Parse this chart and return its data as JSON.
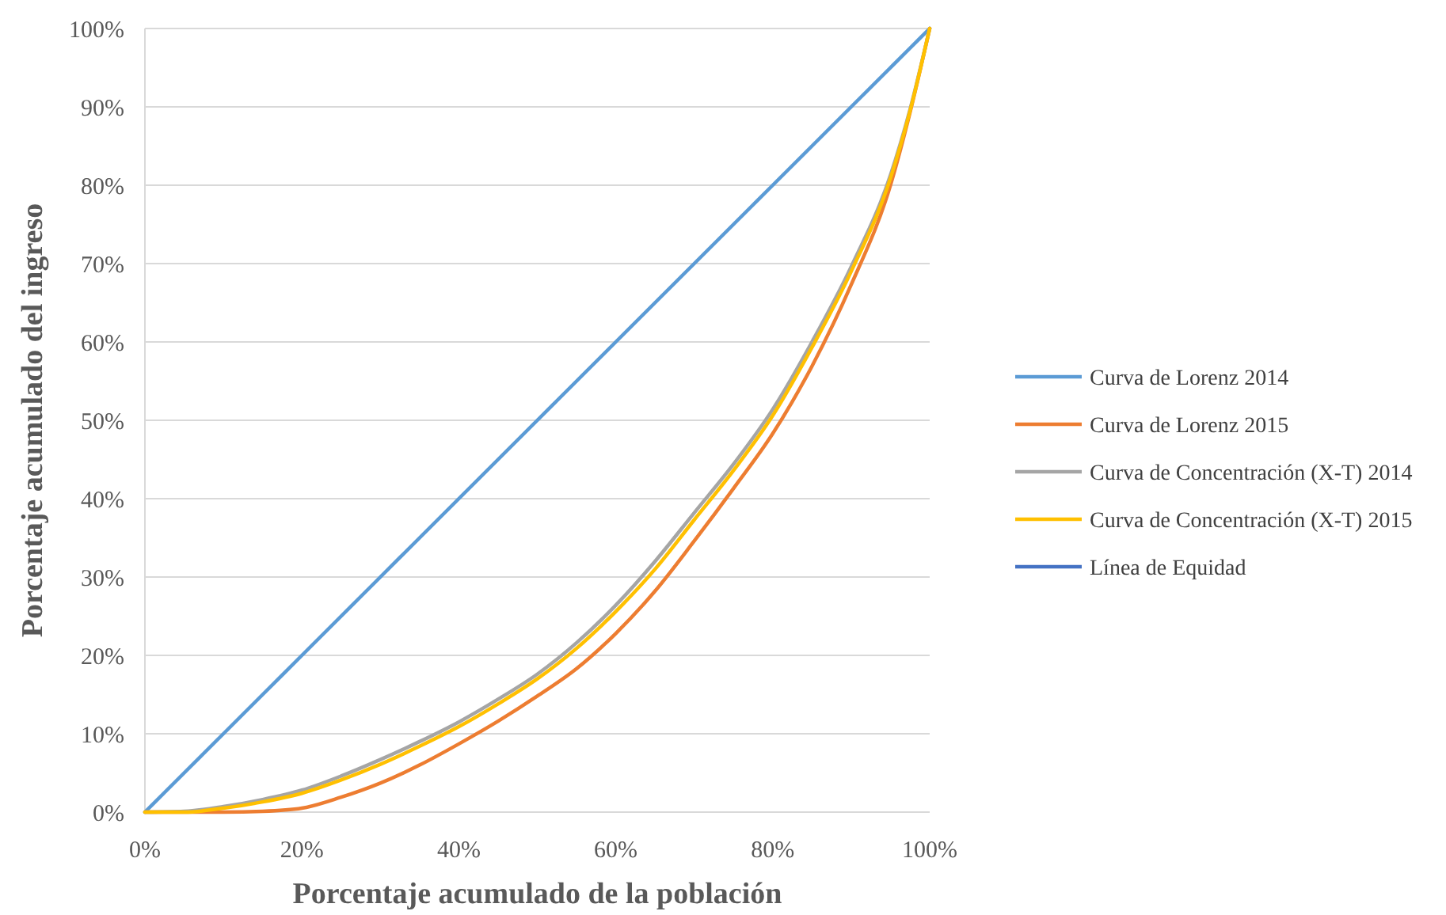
{
  "chart_data": {
    "type": "line",
    "xlabel": "Porcentaje acumulado de la población",
    "ylabel": "Porcentaje acumulado del ingreso",
    "x": [
      0,
      5,
      10,
      15,
      20,
      25,
      30,
      35,
      40,
      45,
      50,
      55,
      60,
      65,
      70,
      75,
      80,
      85,
      90,
      95,
      97.5,
      100
    ],
    "xlim": [
      0,
      100
    ],
    "xticks": [
      {
        "value": 0,
        "label": "0%"
      },
      {
        "value": 20,
        "label": "20%"
      },
      {
        "value": 40,
        "label": "40%"
      },
      {
        "value": 60,
        "label": "60%"
      },
      {
        "value": 80,
        "label": "80%"
      },
      {
        "value": 100,
        "label": "100%"
      }
    ],
    "ylim": [
      0,
      100
    ],
    "yticks": [
      {
        "value": 0,
        "label": "0%"
      },
      {
        "value": 10,
        "label": "10%"
      },
      {
        "value": 20,
        "label": "20%"
      },
      {
        "value": 30,
        "label": "30%"
      },
      {
        "value": 40,
        "label": "40%"
      },
      {
        "value": 50,
        "label": "50%"
      },
      {
        "value": 60,
        "label": "60%"
      },
      {
        "value": 70,
        "label": "70%"
      },
      {
        "value": 80,
        "label": "80%"
      },
      {
        "value": 90,
        "label": "90%"
      },
      {
        "value": 100,
        "label": "100%"
      }
    ],
    "grid": "y",
    "legend": "right",
    "series": [
      {
        "name": "Curva de Lorenz 2014",
        "color": "#5b9bd5",
        "values": [
          0,
          5,
          10,
          15,
          20,
          25,
          30,
          35,
          40,
          45,
          50,
          55,
          60,
          65,
          70,
          75,
          80,
          85,
          90,
          95,
          97.5,
          100
        ]
      },
      {
        "name": "Curva de Lorenz 2015",
        "color": "#ed7d31",
        "values": [
          0,
          0,
          0,
          0.1,
          0.5,
          1.9,
          3.7,
          6,
          8.7,
          11.6,
          14.8,
          18.3,
          22.8,
          28.2,
          34.6,
          41.3,
          48.3,
          56.9,
          67.3,
          80,
          89.3,
          100
        ]
      },
      {
        "name": "Curva de Concentración (X-T) 2014",
        "color": "#a5a5a5",
        "values": [
          0,
          0.1,
          0.7,
          1.6,
          2.8,
          4.6,
          6.7,
          9,
          11.5,
          14.4,
          17.6,
          21.6,
          26.4,
          32,
          38.2,
          44.4,
          51.4,
          60,
          69.6,
          81.3,
          89.7,
          100
        ]
      },
      {
        "name": "Curva de Concentración (X-T) 2015",
        "color": "#ffc000",
        "values": [
          0,
          0,
          0.5,
          1.3,
          2.4,
          4.1,
          6.1,
          8.4,
          10.9,
          13.8,
          17,
          20.9,
          25.6,
          31,
          37.3,
          43.6,
          50.6,
          59.3,
          69,
          80.9,
          89.5,
          100
        ]
      },
      {
        "name": "Línea de Equidad",
        "color": "#4472c4",
        "values": [
          null,
          null,
          null,
          null,
          null,
          null,
          null,
          null,
          null,
          null,
          null,
          null,
          null,
          null,
          null,
          null,
          null,
          null,
          null,
          null,
          null,
          null
        ]
      }
    ]
  }
}
